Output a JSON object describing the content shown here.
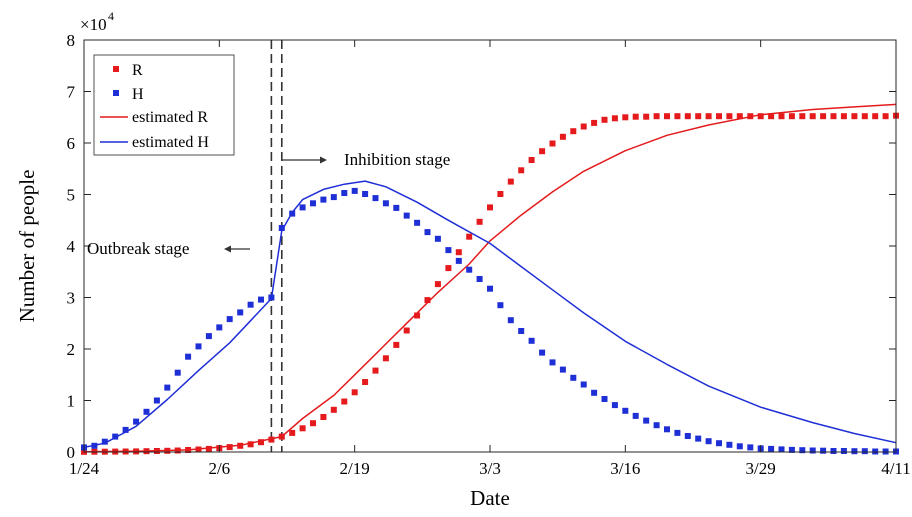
{
  "chart_data": {
    "type": "line",
    "xlabel": "Date",
    "ylabel": "Number of people",
    "y_multiplier": "×10",
    "y_exponent": "4",
    "x_ticks": [
      "1/24",
      "2/6",
      "2/19",
      "3/3",
      "3/16",
      "3/29",
      "4/11"
    ],
    "y_ticks": [
      "0",
      "1",
      "2",
      "3",
      "4",
      "5",
      "6",
      "7",
      "8"
    ],
    "xlim": [
      "1/24",
      "4/11"
    ],
    "ylim": [
      0,
      80000
    ],
    "grid": false,
    "legend_position": "top-left",
    "legend": [
      {
        "label": "R",
        "marker": "square",
        "color": "#e41a1c"
      },
      {
        "label": "H",
        "marker": "square",
        "color": "#1f2fd6"
      },
      {
        "label": "estimated R",
        "marker": "line",
        "color": "#e41a1c"
      },
      {
        "label": "estimated H",
        "marker": "line",
        "color": "#1f2fd6"
      }
    ],
    "annotations": [
      {
        "text": "Outbreak stage",
        "arrow": "left"
      },
      {
        "text": "Inhibition stage",
        "arrow": "right"
      }
    ],
    "stage_boundaries": [
      "2/11",
      "2/12"
    ],
    "colors": {
      "R": "#e41a1c",
      "H": "#1f2fd6",
      "boundary": "#333333"
    },
    "series": [
      {
        "name": "R",
        "kind": "observed",
        "x": [
          "1/24",
          "1/25",
          "1/26",
          "1/27",
          "1/28",
          "1/29",
          "1/30",
          "1/31",
          "2/1",
          "2/2",
          "2/3",
          "2/4",
          "2/5",
          "2/6",
          "2/7",
          "2/8",
          "2/9",
          "2/10",
          "2/11",
          "2/12",
          "2/13",
          "2/14",
          "2/15",
          "2/16",
          "2/17",
          "2/18",
          "2/19",
          "2/20",
          "2/21",
          "2/22",
          "2/23",
          "2/24",
          "2/25",
          "2/26",
          "2/27",
          "2/28",
          "2/29",
          "3/1",
          "3/2",
          "3/3",
          "3/4",
          "3/5",
          "3/6",
          "3/7",
          "3/8",
          "3/9",
          "3/10",
          "3/11",
          "3/12",
          "3/13",
          "3/14",
          "3/15",
          "3/16",
          "3/17",
          "3/18",
          "3/19",
          "3/20",
          "3/21",
          "3/22",
          "3/23",
          "3/24",
          "3/25",
          "3/26",
          "3/27",
          "3/28",
          "3/29",
          "3/30",
          "3/31",
          "4/1",
          "4/2",
          "4/3",
          "4/4",
          "4/5",
          "4/6",
          "4/7",
          "4/8",
          "4/9",
          "4/10",
          "4/11"
        ],
        "y": [
          40,
          50,
          60,
          80,
          100,
          120,
          150,
          190,
          240,
          300,
          380,
          480,
          600,
          750,
          950,
          1200,
          1500,
          1900,
          2400,
          3000,
          3700,
          4600,
          5600,
          6800,
          8200,
          9800,
          11600,
          13600,
          15800,
          18200,
          20800,
          23600,
          26500,
          29500,
          32600,
          35700,
          38800,
          41800,
          44700,
          47500,
          50100,
          52500,
          54700,
          56700,
          58400,
          59900,
          61200,
          62300,
          63200,
          63900,
          64500,
          64800,
          65000,
          65100,
          65100,
          65200,
          65200,
          65200,
          65200,
          65200,
          65200,
          65200,
          65200,
          65200,
          65200,
          65200,
          65200,
          65200,
          65200,
          65200,
          65200,
          65200,
          65200,
          65200,
          65200,
          65200,
          65200,
          65200,
          65300
        ]
      },
      {
        "name": "H",
        "kind": "observed",
        "x": [
          "1/24",
          "1/25",
          "1/26",
          "1/27",
          "1/28",
          "1/29",
          "1/30",
          "1/31",
          "2/1",
          "2/2",
          "2/3",
          "2/4",
          "2/5",
          "2/6",
          "2/7",
          "2/8",
          "2/9",
          "2/10",
          "2/11",
          "2/12",
          "2/13",
          "2/14",
          "2/15",
          "2/16",
          "2/17",
          "2/18",
          "2/19",
          "2/20",
          "2/21",
          "2/22",
          "2/23",
          "2/24",
          "2/25",
          "2/26",
          "2/27",
          "2/28",
          "2/29",
          "3/1",
          "3/2",
          "3/3",
          "3/4",
          "3/5",
          "3/6",
          "3/7",
          "3/8",
          "3/9",
          "3/10",
          "3/11",
          "3/12",
          "3/13",
          "3/14",
          "3/15",
          "3/16",
          "3/17",
          "3/18",
          "3/19",
          "3/20",
          "3/21",
          "3/22",
          "3/23",
          "3/24",
          "3/25",
          "3/26",
          "3/27",
          "3/28",
          "3/29",
          "3/30",
          "3/31",
          "4/1",
          "4/2",
          "4/3",
          "4/4",
          "4/5",
          "4/6",
          "4/7",
          "4/8",
          "4/9",
          "4/10",
          "4/11"
        ],
        "y": [
          900,
          1200,
          2000,
          3000,
          4300,
          5900,
          7800,
          10000,
          12500,
          15400,
          18500,
          20500,
          22500,
          24200,
          25800,
          27100,
          28600,
          29600,
          30000,
          43500,
          46300,
          47500,
          48300,
          49000,
          49500,
          50300,
          50700,
          50100,
          49300,
          48300,
          47400,
          45900,
          44500,
          42700,
          41400,
          39200,
          37100,
          35400,
          33600,
          31700,
          28500,
          25600,
          23500,
          21600,
          19300,
          17400,
          16000,
          14400,
          13100,
          11500,
          10300,
          9100,
          8000,
          7000,
          6100,
          5200,
          4400,
          3700,
          3100,
          2600,
          2100,
          1700,
          1400,
          1100,
          900,
          700,
          600,
          500,
          400,
          350,
          300,
          250,
          200,
          200,
          150,
          150,
          100,
          100,
          100
        ]
      },
      {
        "name": "estimated R",
        "kind": "fitted",
        "x": [
          "1/24",
          "1/29",
          "2/3",
          "2/8",
          "2/12",
          "2/14",
          "2/17",
          "2/19",
          "2/22",
          "2/24",
          "2/27",
          "3/1",
          "3/3",
          "3/6",
          "3/9",
          "3/12",
          "3/16",
          "3/20",
          "3/24",
          "3/29",
          "4/3",
          "4/7",
          "4/11"
        ],
        "y": [
          50,
          150,
          400,
          1300,
          3000,
          6500,
          11000,
          15000,
          21000,
          25000,
          31000,
          36500,
          41000,
          46000,
          50500,
          54500,
          58500,
          61500,
          63500,
          65500,
          66500,
          67000,
          67500
        ]
      },
      {
        "name": "estimated H",
        "kind": "fitted",
        "x": [
          "1/24",
          "1/26",
          "1/29",
          "2/1",
          "2/4",
          "2/7",
          "2/9",
          "2/11",
          "2/12",
          "2/13",
          "2/14",
          "2/16",
          "2/18",
          "2/20",
          "2/22",
          "2/25",
          "2/28",
          "3/3",
          "3/6",
          "3/9",
          "3/12",
          "3/16",
          "3/20",
          "3/24",
          "3/29",
          "4/3",
          "4/7",
          "4/11"
        ],
        "y": [
          900,
          1700,
          5000,
          10200,
          15800,
          21200,
          25500,
          29800,
          43000,
          46500,
          49000,
          51000,
          52000,
          52600,
          51500,
          48500,
          45000,
          40500,
          36000,
          31500,
          27000,
          21500,
          17000,
          12800,
          8700,
          5700,
          3600,
          1800
        ]
      }
    ]
  }
}
